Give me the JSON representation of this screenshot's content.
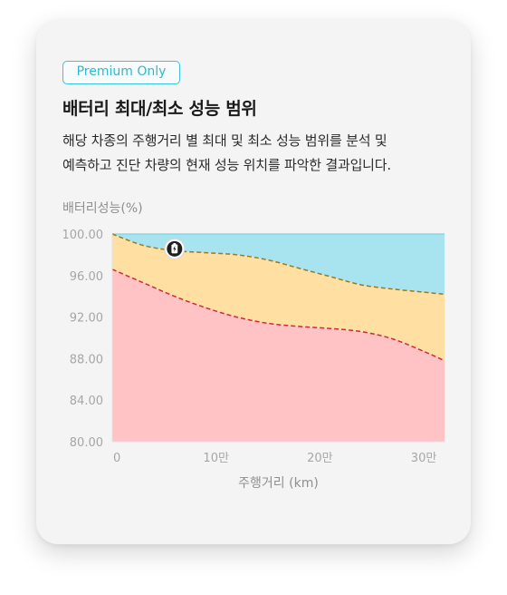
{
  "card": {
    "badge": "Premium Only",
    "title": "배터리 최대/최소 성능 범위",
    "description_line1": "해당 차종의 주행거리 별 최대 및 최소 성능 범위를 분석 및",
    "description_line2": "예측하고 진단 차량의 현재 성능 위치를 파악한 결과입니다."
  },
  "colors": {
    "upper_area": "#a8e4f0",
    "range_area": "#ffe0a2",
    "lower_area": "#ffc3c6",
    "max_line": "#a07818",
    "min_line": "#cf2a3a",
    "badge_border": "#39c3dc"
  },
  "chart_data": {
    "type": "area",
    "ylabel": "배터리성능(%)",
    "xlabel": "주행거리 (km)",
    "ylim": [
      80,
      100
    ],
    "xlim": [
      0,
      320000
    ],
    "yticks": [
      "100.00",
      "96.00",
      "92.00",
      "88.00",
      "84.00",
      "80.00"
    ],
    "ytick_values": [
      100,
      96,
      92,
      88,
      84,
      80
    ],
    "xticks": [
      "0",
      "10만",
      "20만",
      "30만"
    ],
    "xtick_values": [
      0,
      100000,
      200000,
      300000
    ],
    "series": [
      {
        "role": "max",
        "x": [
          0,
          30000,
          60000,
          90000,
          120000,
          150000,
          180000,
          210000,
          240000,
          270000,
          300000,
          320000
        ],
        "y": [
          100.0,
          98.9,
          98.4,
          98.2,
          98.0,
          97.5,
          96.7,
          95.9,
          95.1,
          94.7,
          94.4,
          94.2
        ]
      },
      {
        "role": "min",
        "x": [
          0,
          30000,
          60000,
          90000,
          120000,
          150000,
          180000,
          210000,
          240000,
          270000,
          300000,
          320000
        ],
        "y": [
          96.6,
          95.3,
          94.0,
          92.9,
          92.0,
          91.4,
          91.1,
          90.9,
          90.6,
          89.9,
          88.7,
          87.8
        ]
      }
    ],
    "current_vehicle": {
      "x": 60000,
      "y": 98.4,
      "icon": "battery-bolt-icon"
    },
    "grid": false,
    "legend": "none"
  }
}
